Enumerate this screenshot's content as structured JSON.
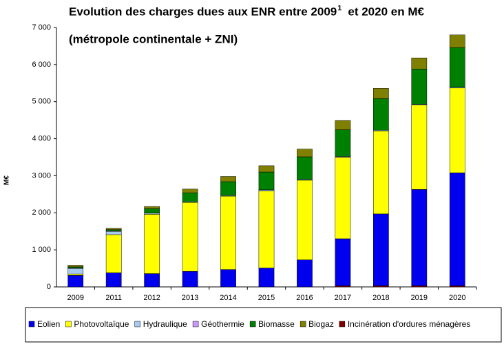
{
  "chart_data": {
    "type": "stacked_bar",
    "title": "Evolution des charges dues aux ENR  entre 2009",
    "title_superscript": "1",
    "title_end": "et 2020  en M€",
    "subtitle": "(métropole continentale + ZNI)",
    "y_label": "M€",
    "categories": [
      "2009",
      "2011",
      "2012",
      "2013",
      "2014",
      "2015",
      "2016",
      "2017",
      "2018",
      "2019",
      "2020"
    ],
    "series": [
      {
        "name": "Eolien",
        "color": "#0000ee",
        "values": [
          310,
          380,
          360,
          420,
          470,
          510,
          730,
          1270,
          1940,
          2600,
          3050
        ]
      },
      {
        "name": "Photovoltaïque",
        "color": "#ffff00",
        "values": [
          40,
          1030,
          1600,
          1860,
          1980,
          2080,
          2150,
          2200,
          2240,
          2280,
          2290
        ]
      },
      {
        "name": "Hydraulique",
        "color": "#a6caf0",
        "values": [
          150,
          90,
          30,
          20,
          20,
          30,
          20,
          20,
          20,
          20,
          20
        ]
      },
      {
        "name": "Géothermie",
        "color": "#cc99ff",
        "values": [
          10,
          5,
          0,
          0,
          0,
          0,
          0,
          0,
          0,
          0,
          0
        ]
      },
      {
        "name": "Biomasse",
        "color": "#008000",
        "values": [
          30,
          40,
          120,
          240,
          370,
          480,
          610,
          720,
          850,
          950,
          1070
        ]
      },
      {
        "name": "Biogaz",
        "color": "#808000",
        "values": [
          45,
          35,
          60,
          100,
          140,
          170,
          210,
          250,
          280,
          300,
          340
        ]
      },
      {
        "name": "Incinération d'ordures ménagères",
        "color": "#800000",
        "values": [
          0,
          0,
          0,
          0,
          0,
          0,
          0,
          30,
          30,
          30,
          30
        ]
      }
    ],
    "ylim": [
      0,
      7000
    ],
    "yticks": [
      0,
      {
        "value": 1000,
        "label": "1 000"
      },
      {
        "value": 2000,
        "label": "2 000"
      },
      {
        "value": 3000,
        "label": "3 000"
      },
      {
        "value": 4000,
        "label": "4 000"
      },
      {
        "value": 5000,
        "label": "5 000"
      },
      {
        "value": 6000,
        "label": "6 000"
      },
      {
        "value": 7000,
        "label": "7 000"
      }
    ],
    "grid": false,
    "legend": "bottom"
  }
}
